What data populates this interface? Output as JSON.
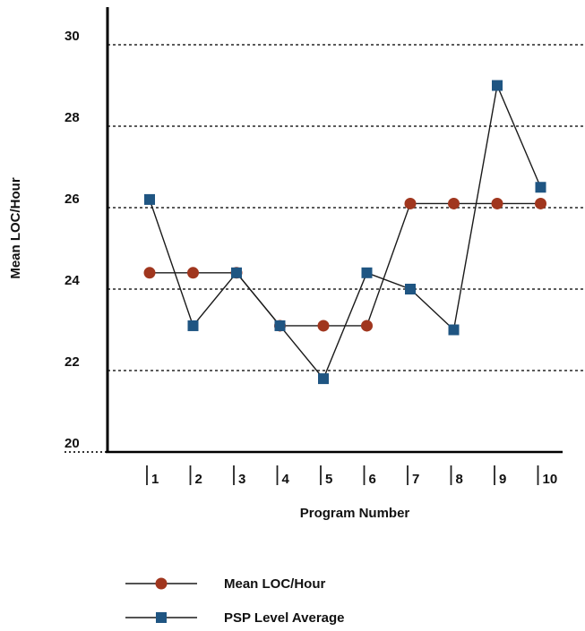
{
  "chart_data": {
    "type": "line",
    "xlabel": "Program Number",
    "ylabel": "Mean LOC/Hour",
    "categories": [
      "1",
      "2",
      "3",
      "4",
      "5",
      "6",
      "7",
      "8",
      "9",
      "10"
    ],
    "ylim": [
      20,
      30
    ],
    "yticks": [
      "20",
      "22",
      "24",
      "26",
      "28",
      "30"
    ],
    "grid": true,
    "legend_position": "bottom",
    "series": [
      {
        "name": "Mean LOC/Hour",
        "marker": "circle",
        "color": "#a0361e",
        "values": [
          24.4,
          24.4,
          24.4,
          23.1,
          23.1,
          23.1,
          26.1,
          26.1,
          26.1,
          26.1
        ]
      },
      {
        "name": "PSP Level Average",
        "marker": "square",
        "color": "#1f5582",
        "values": [
          26.2,
          23.1,
          24.4,
          23.1,
          21.8,
          24.4,
          24.0,
          23.0,
          29.0,
          26.5
        ]
      }
    ]
  }
}
